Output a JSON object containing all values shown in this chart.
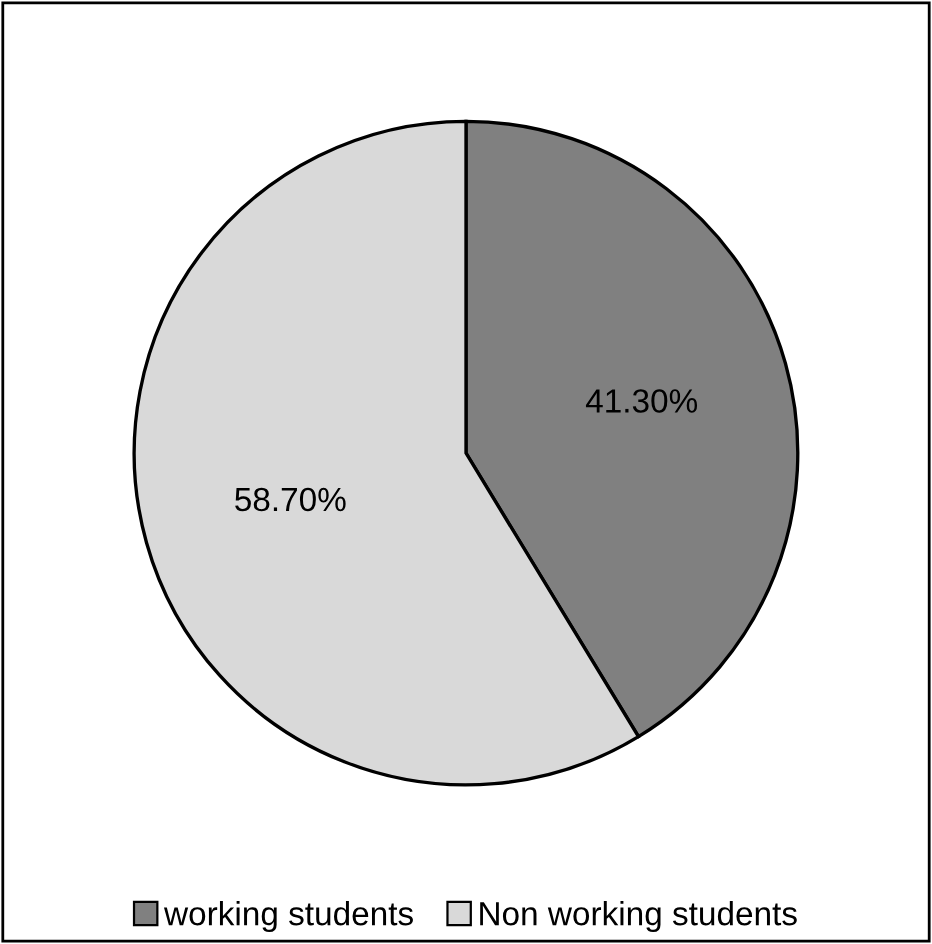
{
  "chart_data": {
    "type": "pie",
    "categories": [
      "working students",
      "Non working students"
    ],
    "values": [
      41.3,
      58.7
    ],
    "colors": [
      "#808080",
      "#d9d9d9"
    ],
    "value_labels": [
      "41.30%",
      "58.70%"
    ],
    "legend": "bottom"
  }
}
